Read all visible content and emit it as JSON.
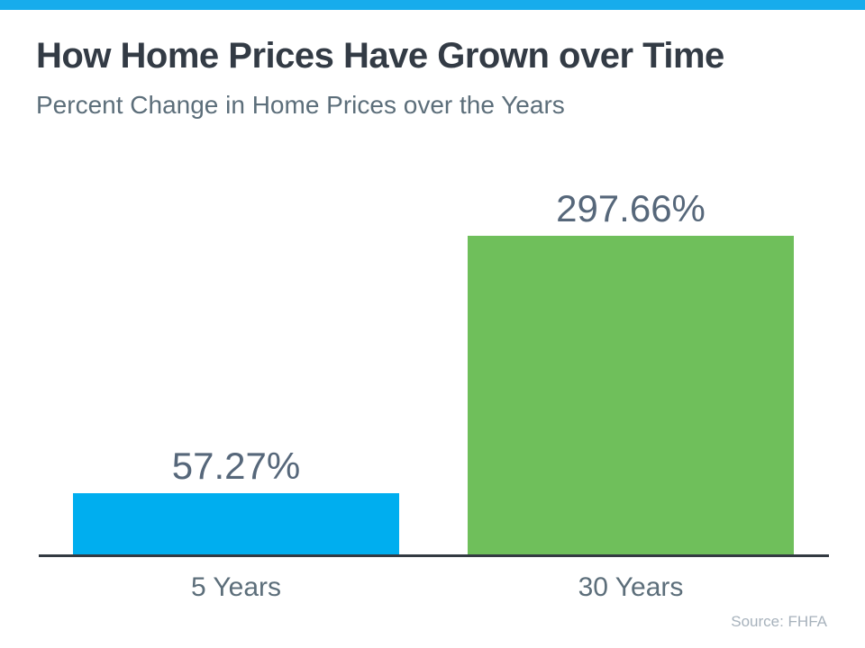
{
  "page": {
    "background": "#ffffff",
    "top_strip_color": "#17ACEC"
  },
  "header": {
    "title": "How Home Prices Have Grown over Time",
    "subtitle": "Percent Change in Home Prices over the Years"
  },
  "chart_data": {
    "type": "bar",
    "title": "How Home Prices Have Grown over Time",
    "subtitle": "Percent Change in Home Prices over the Years",
    "categories": [
      "5 Years",
      "30 Years"
    ],
    "values": [
      57.27,
      297.66
    ],
    "value_labels": [
      "57.27%",
      "297.66%"
    ],
    "bar_colors": [
      "#00AEEF",
      "#6FBF5B"
    ],
    "xlabel": "",
    "ylabel": "",
    "ylim": [
      0,
      297.66
    ],
    "grid": false,
    "legend": "none",
    "axis_color": "#333A42",
    "label_color": "#5C6E7A",
    "value_label_color": "#56677A",
    "title_color": "#333B45",
    "source_color": "#A7B2BC"
  },
  "footer": {
    "source": "Source: FHFA"
  }
}
